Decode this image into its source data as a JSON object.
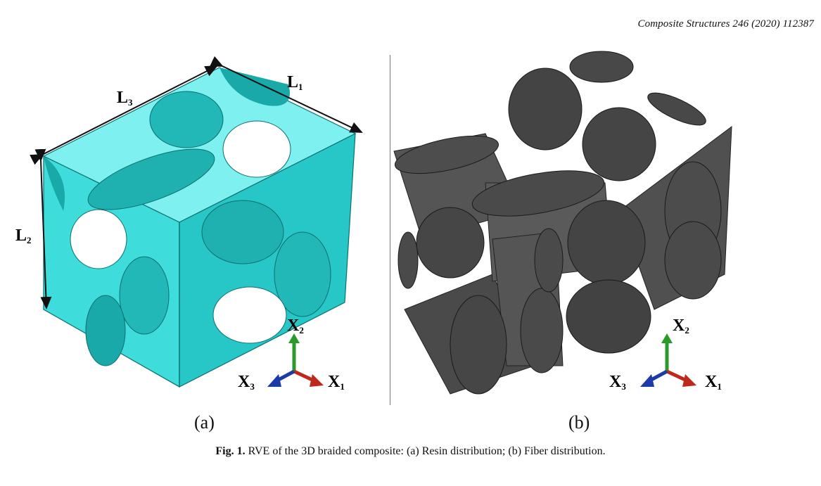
{
  "header": {
    "journal_ref": "Composite Structures 246 (2020) 112387"
  },
  "figure": {
    "panel_a": {
      "label": "(a)",
      "color": "#3fdcdc",
      "dimension_labels": {
        "L1_main": "L",
        "L1_sub": "1",
        "L2_main": "L",
        "L2_sub": "2",
        "L3_main": "L",
        "L3_sub": "3"
      },
      "axes": {
        "x1_main": "X",
        "x1_sub": "1",
        "x2_main": "X",
        "x2_sub": "2",
        "x3_main": "X",
        "x3_sub": "3"
      }
    },
    "panel_b": {
      "label": "(b)",
      "color": "#4a4a4a",
      "axes": {
        "x1_main": "X",
        "x1_sub": "1",
        "x2_main": "X",
        "x2_sub": "2",
        "x3_main": "X",
        "x3_sub": "3"
      }
    },
    "axis_colors": {
      "x1": "#c0281c",
      "x2": "#2a9a2a",
      "x3": "#1c3aa8"
    }
  },
  "caption": {
    "fig_label": "Fig. 1.",
    "text": "RVE of the 3D braided composite: (a) Resin distribution; (b) Fiber distribution."
  }
}
